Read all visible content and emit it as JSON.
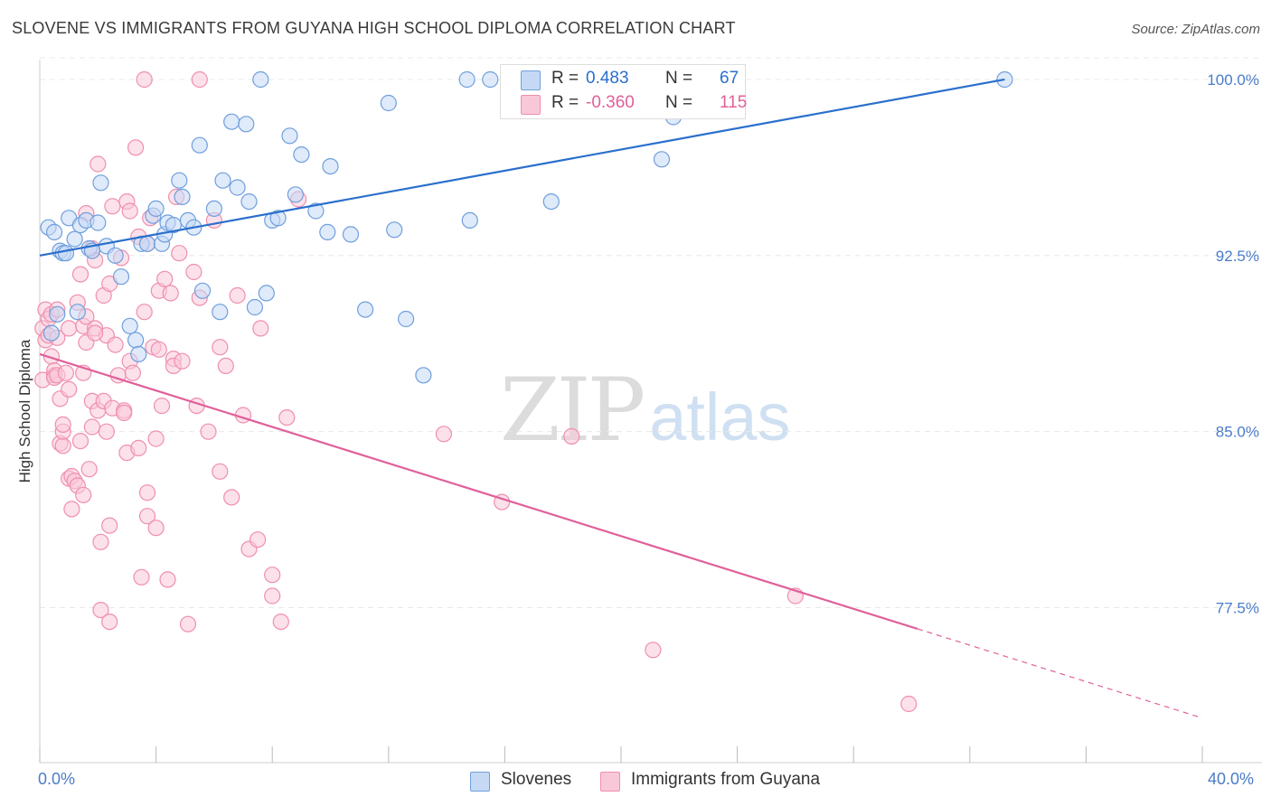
{
  "header": {
    "title": "SLOVENE VS IMMIGRANTS FROM GUYANA HIGH SCHOOL DIPLOMA CORRELATION CHART",
    "source": "Source: ZipAtlas.com"
  },
  "watermark": {
    "zip": "ZIP",
    "atlas": "atlas"
  },
  "colors": {
    "blue_fill": "#c5d9f5",
    "blue_stroke": "#6f9fdc",
    "blue_line": "#2a6fcc",
    "blue_text": "#2a6fcc",
    "pink_fill": "#f9c8d8",
    "pink_stroke": "#ef8fad",
    "pink_line": "#e0609a",
    "pink_text": "#e0609a",
    "axis_text": "#4a7cc9",
    "grid": "#e8e8e8"
  },
  "legend": {
    "series": [
      {
        "r_label": "R =",
        "r_value": "0.483",
        "n_label": "N =",
        "n_value": "67"
      },
      {
        "r_label": "R =",
        "r_value": "-0.360",
        "n_label": "N =",
        "n_value": "115"
      }
    ]
  },
  "bottom_legend": {
    "items": [
      {
        "label": "Slovenes"
      },
      {
        "label": "Immigrants from Guyana"
      }
    ]
  },
  "chart_data": {
    "type": "scatter",
    "title": "SLOVENE VS IMMIGRANTS FROM GUYANA HIGH SCHOOL DIPLOMA CORRELATION CHART",
    "xlabel": "",
    "ylabel": "High School Diploma",
    "xlim": [
      0,
      40
    ],
    "ylim": [
      70.9,
      101.0
    ],
    "x_tick_labels": [
      "0.0%",
      "40.0%"
    ],
    "y_ticks": [
      100.0,
      92.5,
      85.0,
      77.5
    ],
    "y_tick_labels": [
      "100.0%",
      "92.5%",
      "85.0%",
      "77.5%"
    ],
    "grid": true,
    "legend_position": "top-center",
    "series": [
      {
        "name": "Slovenes",
        "r": 0.483,
        "n": 67,
        "trend": {
          "x": [
            0.0,
            33.2
          ],
          "y": [
            92.5,
            100.0
          ]
        },
        "points": [
          [
            0.3,
            93.7
          ],
          [
            0.5,
            93.5
          ],
          [
            0.7,
            92.7
          ],
          [
            0.8,
            92.6
          ],
          [
            1.0,
            94.1
          ],
          [
            1.2,
            93.2
          ],
          [
            1.3,
            90.1
          ],
          [
            1.4,
            93.8
          ],
          [
            1.6,
            94.0
          ],
          [
            1.7,
            92.8
          ],
          [
            1.8,
            92.7
          ],
          [
            2.0,
            93.9
          ],
          [
            2.1,
            95.6
          ],
          [
            2.3,
            92.9
          ],
          [
            2.6,
            92.5
          ],
          [
            2.8,
            91.6
          ],
          [
            3.1,
            89.5
          ],
          [
            3.3,
            88.9
          ],
          [
            3.4,
            88.3
          ],
          [
            3.5,
            93.0
          ],
          [
            3.7,
            93.0
          ],
          [
            3.9,
            94.2
          ],
          [
            4.0,
            94.5
          ],
          [
            4.2,
            93.0
          ],
          [
            4.3,
            93.4
          ],
          [
            4.4,
            93.9
          ],
          [
            4.6,
            93.8
          ],
          [
            4.8,
            95.7
          ],
          [
            4.9,
            95.0
          ],
          [
            5.1,
            94.0
          ],
          [
            5.3,
            93.7
          ],
          [
            5.5,
            97.2
          ],
          [
            5.6,
            91.0
          ],
          [
            6.0,
            94.5
          ],
          [
            6.2,
            90.1
          ],
          [
            6.3,
            95.7
          ],
          [
            6.6,
            98.2
          ],
          [
            6.8,
            95.4
          ],
          [
            7.1,
            98.1
          ],
          [
            7.2,
            94.8
          ],
          [
            7.4,
            90.3
          ],
          [
            7.6,
            100.0
          ],
          [
            7.8,
            90.9
          ],
          [
            8.0,
            94.0
          ],
          [
            8.2,
            94.1
          ],
          [
            8.6,
            97.6
          ],
          [
            8.8,
            95.1
          ],
          [
            9.0,
            96.8
          ],
          [
            9.5,
            94.4
          ],
          [
            9.9,
            93.5
          ],
          [
            10.0,
            96.3
          ],
          [
            10.7,
            93.4
          ],
          [
            11.2,
            90.2
          ],
          [
            12.2,
            93.6
          ],
          [
            12.0,
            99.0
          ],
          [
            12.6,
            89.8
          ],
          [
            13.2,
            87.4
          ],
          [
            14.8,
            94.0
          ],
          [
            14.7,
            100.0
          ],
          [
            15.5,
            100.0
          ],
          [
            17.6,
            94.8
          ],
          [
            21.4,
            96.6
          ],
          [
            21.8,
            98.4
          ],
          [
            33.2,
            100.0
          ],
          [
            0.4,
            89.2
          ],
          [
            0.6,
            90.0
          ],
          [
            0.9,
            92.6
          ]
        ]
      },
      {
        "name": "Immigrants from Guyana",
        "r": -0.36,
        "n": 115,
        "trend": {
          "x": [
            0.0,
            30.2
          ],
          "y": [
            88.3,
            76.6
          ]
        },
        "trend_dashed": {
          "x": [
            30.2,
            40.0
          ],
          "y": [
            76.6,
            72.8
          ]
        },
        "points": [
          [
            0.1,
            89.4
          ],
          [
            0.1,
            87.2
          ],
          [
            0.2,
            90.2
          ],
          [
            0.2,
            88.9
          ],
          [
            0.3,
            89.8
          ],
          [
            0.3,
            89.1
          ],
          [
            0.4,
            90.0
          ],
          [
            0.4,
            88.2
          ],
          [
            0.5,
            87.4
          ],
          [
            0.5,
            87.6
          ],
          [
            0.5,
            87.3
          ],
          [
            0.6,
            87.4
          ],
          [
            0.6,
            89.0
          ],
          [
            0.6,
            90.2
          ],
          [
            0.7,
            86.4
          ],
          [
            0.7,
            84.5
          ],
          [
            0.8,
            84.4
          ],
          [
            0.8,
            85.0
          ],
          [
            0.8,
            85.3
          ],
          [
            0.9,
            87.5
          ],
          [
            1.0,
            89.4
          ],
          [
            1.0,
            86.8
          ],
          [
            1.0,
            83.0
          ],
          [
            1.1,
            83.1
          ],
          [
            1.1,
            81.7
          ],
          [
            1.2,
            82.9
          ],
          [
            1.3,
            82.7
          ],
          [
            1.3,
            90.5
          ],
          [
            1.4,
            91.7
          ],
          [
            1.4,
            84.6
          ],
          [
            1.5,
            87.5
          ],
          [
            1.5,
            89.5
          ],
          [
            1.5,
            82.3
          ],
          [
            1.6,
            94.3
          ],
          [
            1.6,
            88.8
          ],
          [
            1.6,
            89.9
          ],
          [
            1.7,
            83.4
          ],
          [
            1.8,
            85.2
          ],
          [
            1.8,
            86.3
          ],
          [
            1.8,
            92.8
          ],
          [
            1.9,
            92.3
          ],
          [
            1.9,
            89.4
          ],
          [
            2.0,
            96.4
          ],
          [
            2.0,
            85.9
          ],
          [
            2.1,
            80.3
          ],
          [
            2.1,
            77.4
          ],
          [
            2.2,
            86.3
          ],
          [
            2.2,
            90.8
          ],
          [
            2.3,
            85.0
          ],
          [
            2.3,
            89.1
          ],
          [
            2.4,
            91.3
          ],
          [
            2.4,
            81.0
          ],
          [
            2.4,
            76.9
          ],
          [
            2.5,
            94.6
          ],
          [
            2.5,
            86.0
          ],
          [
            2.6,
            88.7
          ],
          [
            2.7,
            87.4
          ],
          [
            2.8,
            92.4
          ],
          [
            2.9,
            85.9
          ],
          [
            2.9,
            85.8
          ],
          [
            3.0,
            94.8
          ],
          [
            3.0,
            84.1
          ],
          [
            3.1,
            94.4
          ],
          [
            3.1,
            88.0
          ],
          [
            3.2,
            87.5
          ],
          [
            3.3,
            97.1
          ],
          [
            3.4,
            93.3
          ],
          [
            3.4,
            84.3
          ],
          [
            3.5,
            78.8
          ],
          [
            3.6,
            90.1
          ],
          [
            3.7,
            93.0
          ],
          [
            3.7,
            82.4
          ],
          [
            3.7,
            81.4
          ],
          [
            3.8,
            94.1
          ],
          [
            3.9,
            88.6
          ],
          [
            4.0,
            80.9
          ],
          [
            4.0,
            84.7
          ],
          [
            4.1,
            91.0
          ],
          [
            4.1,
            88.5
          ],
          [
            4.2,
            86.1
          ],
          [
            4.3,
            91.5
          ],
          [
            4.4,
            78.7
          ],
          [
            4.5,
            90.9
          ],
          [
            4.6,
            88.1
          ],
          [
            4.6,
            87.8
          ],
          [
            4.7,
            95.0
          ],
          [
            4.8,
            92.6
          ],
          [
            4.9,
            88.0
          ],
          [
            5.1,
            76.8
          ],
          [
            5.3,
            91.8
          ],
          [
            5.4,
            86.1
          ],
          [
            5.5,
            90.7
          ],
          [
            5.5,
            100.0
          ],
          [
            5.8,
            85.0
          ],
          [
            6.0,
            94.0
          ],
          [
            6.2,
            88.6
          ],
          [
            6.2,
            83.3
          ],
          [
            6.4,
            87.8
          ],
          [
            6.6,
            82.2
          ],
          [
            6.8,
            90.8
          ],
          [
            7.0,
            85.7
          ],
          [
            7.2,
            80.0
          ],
          [
            7.5,
            80.4
          ],
          [
            7.6,
            89.4
          ],
          [
            8.0,
            78.9
          ],
          [
            8.0,
            78.0
          ],
          [
            8.3,
            76.9
          ],
          [
            8.5,
            85.6
          ],
          [
            8.9,
            94.9
          ],
          [
            3.6,
            100.0
          ],
          [
            13.9,
            84.9
          ],
          [
            15.9,
            82.0
          ],
          [
            18.3,
            84.8
          ],
          [
            21.1,
            75.7
          ],
          [
            26.0,
            78.0
          ],
          [
            29.9,
            73.4
          ],
          [
            1.9,
            89.2
          ]
        ]
      }
    ]
  }
}
